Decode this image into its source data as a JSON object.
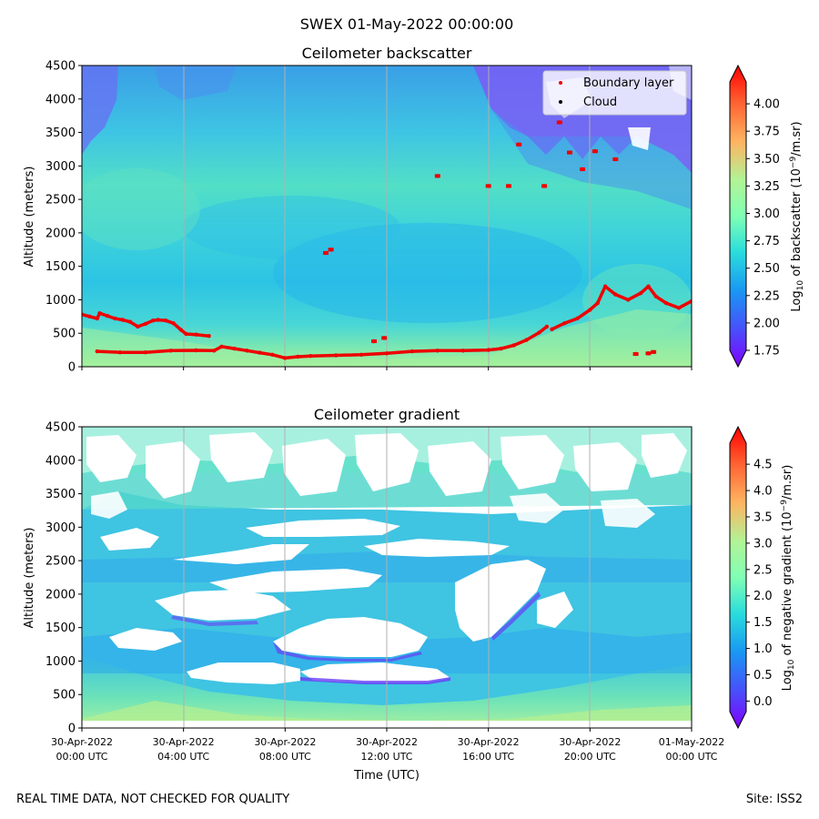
{
  "figure_title": "SWEX 01-May-2022 00:00:00",
  "footer_left": "REAL TIME DATA, NOT CHECKED FOR QUALITY",
  "footer_right": "Site: ISS2",
  "x_ticks": [
    {
      "line1": "30-Apr-2022",
      "line2": "00:00 UTC"
    },
    {
      "line1": "30-Apr-2022",
      "line2": "04:00 UTC"
    },
    {
      "line1": "30-Apr-2022",
      "line2": "08:00 UTC"
    },
    {
      "line1": "30-Apr-2022",
      "line2": "12:00 UTC"
    },
    {
      "line1": "30-Apr-2022",
      "line2": "16:00 UTC"
    },
    {
      "line1": "30-Apr-2022",
      "line2": "20:00 UTC"
    },
    {
      "line1": "01-May-2022",
      "line2": "00:00 UTC"
    }
  ],
  "colors": {
    "boundary_layer": "#ee0000",
    "cloud": "#000000",
    "gridline": "#b0b0b0"
  },
  "chart_data": [
    {
      "type": "heatmap",
      "title": "Ceilometer backscatter",
      "xlabel": "",
      "ylabel": "Altitude (meters)",
      "xlim_hours": [
        0,
        24
      ],
      "ylim": [
        0,
        4500
      ],
      "yticks": [
        0,
        500,
        1000,
        1500,
        2000,
        2500,
        3000,
        3500,
        4000,
        4500
      ],
      "colorbar": {
        "label": "Log10 of backscatter (10^-9/m.sr)",
        "label_prefix": "Log",
        "label_sub": "10",
        "label_mid": " of backscatter (10",
        "label_sup": "−9",
        "label_suffix": "/m.sr)",
        "range": [
          1.75,
          4.2
        ],
        "ticks": [
          "1.75",
          "2.00",
          "2.25",
          "2.50",
          "2.75",
          "3.00",
          "3.25",
          "3.50",
          "3.75",
          "4.00"
        ],
        "tick_values": [
          1.75,
          2.0,
          2.25,
          2.5,
          2.75,
          3.0,
          3.25,
          3.5,
          3.75,
          4.0
        ]
      },
      "legend": {
        "placement": "top-right",
        "entries": [
          {
            "label": "Boundary layer",
            "color": "#ee0000"
          },
          {
            "label": "Cloud",
            "color": "#000000"
          }
        ]
      },
      "series": [
        {
          "name": "Boundary layer (lower)",
          "x_hours": [
            0.6,
            1.5,
            2.5,
            3.5,
            4.5,
            5.2,
            5.5,
            6.0,
            6.5,
            7.0,
            7.5,
            8.0,
            8.5,
            9.0,
            10.0,
            11.0,
            12.0,
            13.0,
            14.0,
            15.0,
            16.0,
            16.5,
            17.0,
            17.5,
            18.0,
            18.3
          ],
          "altitude_m": [
            230,
            215,
            215,
            240,
            245,
            240,
            300,
            270,
            240,
            210,
            180,
            130,
            150,
            160,
            170,
            180,
            200,
            230,
            240,
            240,
            250,
            270,
            320,
            400,
            510,
            600
          ]
        },
        {
          "name": "Boundary layer (upper)",
          "x_hours": [
            0.0,
            0.3,
            0.6,
            0.7,
            1.0,
            1.3,
            1.6,
            1.9,
            2.2,
            2.5,
            2.8,
            3.0,
            3.3,
            3.6,
            3.9,
            4.1,
            4.5,
            5.0
          ],
          "altitude_m": [
            780,
            750,
            720,
            800,
            760,
            720,
            700,
            670,
            600,
            640,
            690,
            700,
            690,
            650,
            550,
            490,
            480,
            460
          ]
        },
        {
          "name": "Boundary layer (late)",
          "x_hours": [
            18.5,
            19.0,
            19.5,
            20.0,
            20.3,
            20.6,
            21.0,
            21.5,
            22.0,
            22.3,
            22.6,
            23.0,
            23.5,
            24.0
          ],
          "altitude_m": [
            560,
            650,
            720,
            850,
            950,
            1200,
            1080,
            1000,
            1100,
            1200,
            1050,
            950,
            880,
            980
          ]
        },
        {
          "name": "Boundary layer (fragments)",
          "x_hours": [
            9.6,
            9.8,
            11.5,
            11.9,
            14.0,
            16.0,
            16.8,
            17.2,
            18.2,
            18.8,
            19.2,
            19.7,
            20.2,
            21.0,
            21.8,
            22.3,
            22.5
          ],
          "altitude_m": [
            1700,
            1750,
            380,
            430,
            2850,
            2700,
            2700,
            3320,
            2700,
            3650,
            3200,
            2950,
            3220,
            3100,
            190,
            200,
            220
          ]
        }
      ]
    },
    {
      "type": "heatmap",
      "title": "Ceilometer gradient",
      "xlabel": "Time (UTC)",
      "ylabel": "Altitude (meters)",
      "xlim_hours": [
        0,
        24
      ],
      "ylim": [
        0,
        4500
      ],
      "yticks": [
        0,
        500,
        1000,
        1500,
        2000,
        2500,
        3000,
        3500,
        4000,
        4500
      ],
      "colorbar": {
        "label": "Log10 of negative gradient (10^-9/m.sr)",
        "label_prefix": "Log",
        "label_sub": "10",
        "label_mid": " of negative gradient (10",
        "label_sup": "−9",
        "label_suffix": "/m.sr)",
        "range": [
          -0.2,
          4.9
        ],
        "ticks": [
          "0.0",
          "0.5",
          "1.0",
          "1.5",
          "2.0",
          "2.5",
          "3.0",
          "3.5",
          "4.0",
          "4.5"
        ],
        "tick_values": [
          0.0,
          0.5,
          1.0,
          1.5,
          2.0,
          2.5,
          3.0,
          3.5,
          4.0,
          4.5
        ]
      },
      "white_gaps": [
        {
          "x_hours": [
            4.5,
            10.5
          ],
          "altitude_m": [
            850,
            1000
          ]
        },
        {
          "x_hours": [
            9.0,
            13.0
          ],
          "altitude_m": [
            1000,
            1350
          ]
        },
        {
          "x_hours": [
            3.5,
            7.5
          ],
          "altitude_m": [
            1500,
            1900
          ]
        },
        {
          "x_hours": [
            5.0,
            11.5
          ],
          "altitude_m": [
            2300,
            2700
          ]
        },
        {
          "x_hours": [
            0.2,
            4.0
          ],
          "altitude_m": [
            3300,
            4300
          ]
        },
        {
          "x_hours": [
            7.0,
            16.0
          ],
          "altitude_m": [
            3300,
            4400
          ]
        },
        {
          "x_hours": [
            16.5,
            23.5
          ],
          "altitude_m": [
            3300,
            4200
          ]
        },
        {
          "x_hours": [
            15.0,
            21.0
          ],
          "altitude_m": [
            1200,
            2600
          ]
        }
      ]
    }
  ]
}
